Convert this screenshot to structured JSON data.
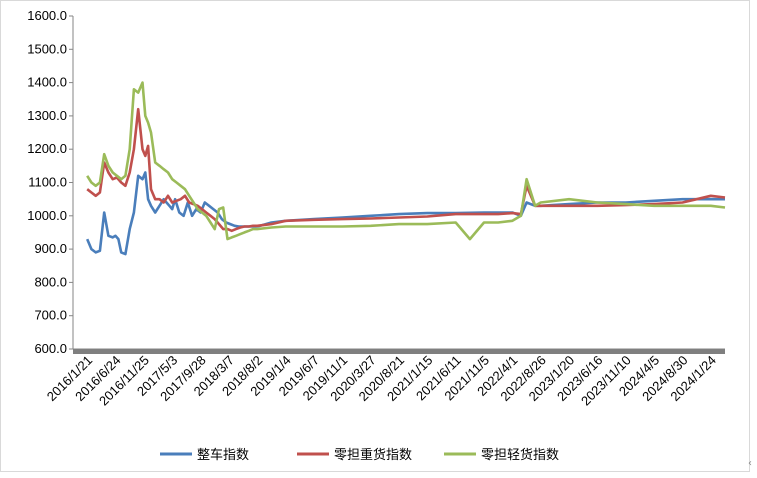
{
  "chart_data": {
    "type": "line",
    "title": "",
    "xlabel": "",
    "ylabel": "",
    "ylim": [
      600,
      1600
    ],
    "yticks": [
      "600.0",
      "700.0",
      "800.0",
      "900.0",
      "1000.0",
      "1100.0",
      "1200.0",
      "1300.0",
      "1400.0",
      "1500.0",
      "1600.0"
    ],
    "categories": [
      "2016/1/21",
      "2016/6/24",
      "2016/11/25",
      "2017/5/3",
      "2017/9/28",
      "2018/3/7",
      "2018/8/2",
      "2019/1/4",
      "2019/6/7",
      "2019/11/1",
      "2020/3/27",
      "2020/8/21",
      "2021/1/15",
      "2021/6/11",
      "2021/11/5",
      "2022/4/1",
      "2022/8/26",
      "2023/1/20",
      "2023/6/16",
      "2023/11/10",
      "2024/4/5",
      "2024/8/30",
      "2024/1/24"
    ],
    "grid": false,
    "legend_position": "bottom",
    "series": [
      {
        "name": "整车指数",
        "color": "#4a7ebb",
        "x": [
          0,
          0.15,
          0.3,
          0.45,
          0.6,
          0.75,
          0.9,
          1.0,
          1.1,
          1.2,
          1.35,
          1.5,
          1.65,
          1.8,
          1.95,
          2.05,
          2.15,
          2.25,
          2.4,
          2.55,
          2.7,
          2.8,
          2.9,
          3.0,
          3.1,
          3.25,
          3.4,
          3.55,
          3.7,
          3.85,
          4.0,
          4.15,
          4.3,
          4.45,
          4.6,
          4.75,
          4.9,
          5.05,
          5.2,
          5.35,
          5.5,
          5.65,
          5.8,
          5.95,
          6.1,
          6.3,
          6.5,
          7,
          8,
          9,
          10,
          11,
          12,
          13,
          14,
          14.5,
          15,
          15.3,
          15.5,
          15.8,
          16,
          17,
          18,
          19,
          20,
          21,
          22,
          22.5
        ],
        "y": [
          930,
          900,
          890,
          895,
          1010,
          940,
          935,
          940,
          930,
          890,
          885,
          960,
          1010,
          1120,
          1110,
          1130,
          1050,
          1030,
          1010,
          1030,
          1050,
          1040,
          1030,
          1020,
          1050,
          1010,
          1000,
          1040,
          1000,
          1020,
          1010,
          1040,
          1030,
          1020,
          1010,
          990,
          980,
          975,
          970,
          968,
          968,
          968,
          968,
          968,
          970,
          975,
          980,
          985,
          990,
          995,
          1000,
          1005,
          1008,
          1008,
          1010,
          1010,
          1010,
          1000,
          1040,
          1030,
          1030,
          1035,
          1040,
          1040,
          1045,
          1050,
          1050,
          1050
        ]
      },
      {
        "name": "零担重货指数",
        "color": "#c0504d",
        "x": [
          0,
          0.15,
          0.3,
          0.45,
          0.6,
          0.75,
          0.9,
          1.05,
          1.2,
          1.35,
          1.5,
          1.65,
          1.8,
          1.95,
          2.05,
          2.15,
          2.25,
          2.4,
          2.55,
          2.7,
          2.85,
          3.0,
          3.15,
          3.3,
          3.45,
          3.6,
          3.75,
          3.9,
          4.05,
          4.2,
          4.35,
          4.5,
          4.65,
          4.8,
          4.95,
          5.1,
          5.25,
          5.4,
          5.55,
          5.7,
          5.85,
          6.0,
          6.5,
          7,
          8,
          9,
          10,
          11,
          12,
          13,
          14,
          14.5,
          15,
          15.3,
          15.5,
          15.8,
          16,
          17,
          18,
          19,
          20,
          21,
          21.5,
          22,
          22.5
        ],
        "y": [
          1080,
          1070,
          1060,
          1070,
          1160,
          1130,
          1110,
          1115,
          1100,
          1090,
          1130,
          1200,
          1320,
          1200,
          1180,
          1210,
          1080,
          1050,
          1050,
          1040,
          1060,
          1040,
          1045,
          1050,
          1060,
          1040,
          1035,
          1030,
          1020,
          1010,
          1000,
          990,
          975,
          960,
          960,
          955,
          960,
          965,
          968,
          968,
          970,
          970,
          975,
          985,
          988,
          990,
          992,
          995,
          998,
          1005,
          1005,
          1005,
          1008,
          1005,
          1090,
          1030,
          1030,
          1030,
          1030,
          1032,
          1035,
          1040,
          1050,
          1060,
          1055
        ]
      },
      {
        "name": "零担轻货指数",
        "color": "#9bbb59",
        "x": [
          0,
          0.15,
          0.3,
          0.45,
          0.6,
          0.75,
          0.9,
          1.05,
          1.2,
          1.35,
          1.5,
          1.65,
          1.8,
          1.95,
          2.05,
          2.15,
          2.25,
          2.4,
          2.55,
          2.7,
          2.85,
          3.0,
          3.15,
          3.3,
          3.45,
          3.6,
          3.75,
          3.9,
          4.05,
          4.2,
          4.35,
          4.5,
          4.65,
          4.8,
          4.95,
          5.1,
          5.25,
          5.4,
          5.55,
          5.7,
          5.85,
          6.0,
          6.5,
          7,
          8,
          9,
          10,
          11,
          12,
          13,
          13.5,
          14,
          14.5,
          15,
          15.3,
          15.5,
          15.8,
          16,
          17,
          18,
          19,
          20,
          21,
          21.5,
          22,
          22.5
        ],
        "y": [
          1120,
          1100,
          1090,
          1100,
          1185,
          1150,
          1130,
          1120,
          1110,
          1120,
          1200,
          1380,
          1370,
          1400,
          1300,
          1280,
          1250,
          1160,
          1150,
          1140,
          1130,
          1110,
          1100,
          1090,
          1080,
          1060,
          1040,
          1020,
          1010,
          1000,
          980,
          960,
          1020,
          1025,
          930,
          935,
          940,
          945,
          950,
          955,
          960,
          960,
          965,
          968,
          968,
          968,
          970,
          975,
          975,
          980,
          930,
          980,
          980,
          985,
          1000,
          1110,
          1030,
          1040,
          1050,
          1040,
          1035,
          1030,
          1030,
          1030,
          1030,
          1025
        ]
      }
    ]
  }
}
